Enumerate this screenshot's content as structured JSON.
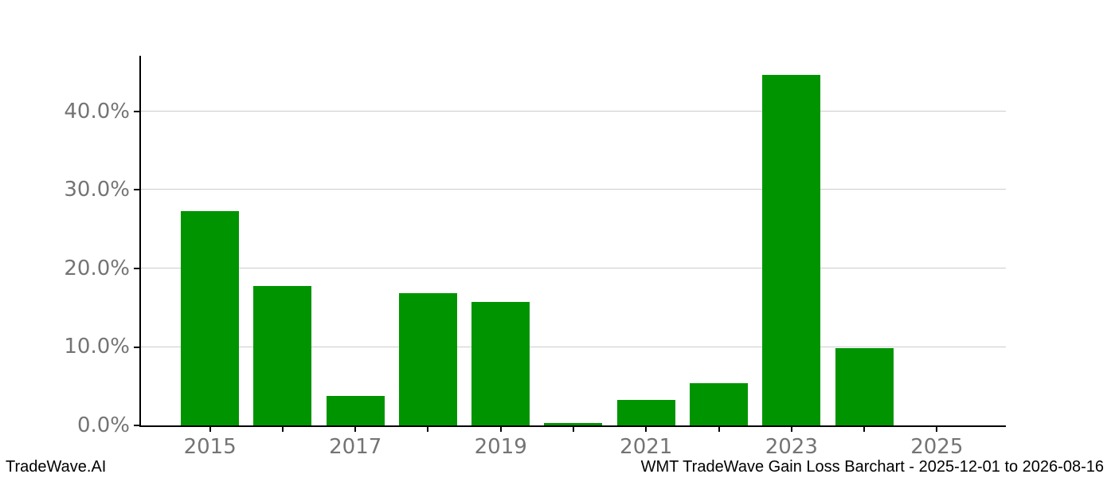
{
  "chart_data": {
    "type": "bar",
    "title": "",
    "categories": [
      2015,
      2016,
      2017,
      2018,
      2019,
      2020,
      2021,
      2022,
      2023,
      2024,
      2025
    ],
    "values": [
      27.3,
      17.8,
      3.8,
      16.9,
      15.7,
      0.3,
      3.3,
      5.4,
      44.7,
      9.8,
      0.0
    ],
    "xlabel": "",
    "ylabel": "",
    "ytick_values": [
      0,
      10,
      20,
      30,
      40
    ],
    "ytick_labels": [
      "0.0%",
      "10.0%",
      "20.0%",
      "30.0%",
      "40.0%"
    ],
    "xtick_years": [
      2015,
      2017,
      2019,
      2021,
      2023,
      2025
    ],
    "xtick_labels": [
      "2015",
      "2017",
      "2019",
      "2021",
      "2023",
      "2025"
    ],
    "xlim": [
      2014.05,
      2025.95
    ],
    "ylim": [
      0,
      47.1
    ],
    "bar_width_years": 0.8,
    "grid": "horizontal",
    "legend": "none",
    "bar_color": "#009400",
    "gridline_color": "#cccccc",
    "axis_color": "#000000",
    "tick_label_color": "#747474"
  },
  "footer": {
    "brand": "TradeWave.AI",
    "caption": "WMT TradeWave Gain Loss Barchart - 2025-12-01 to 2026-08-16"
  }
}
